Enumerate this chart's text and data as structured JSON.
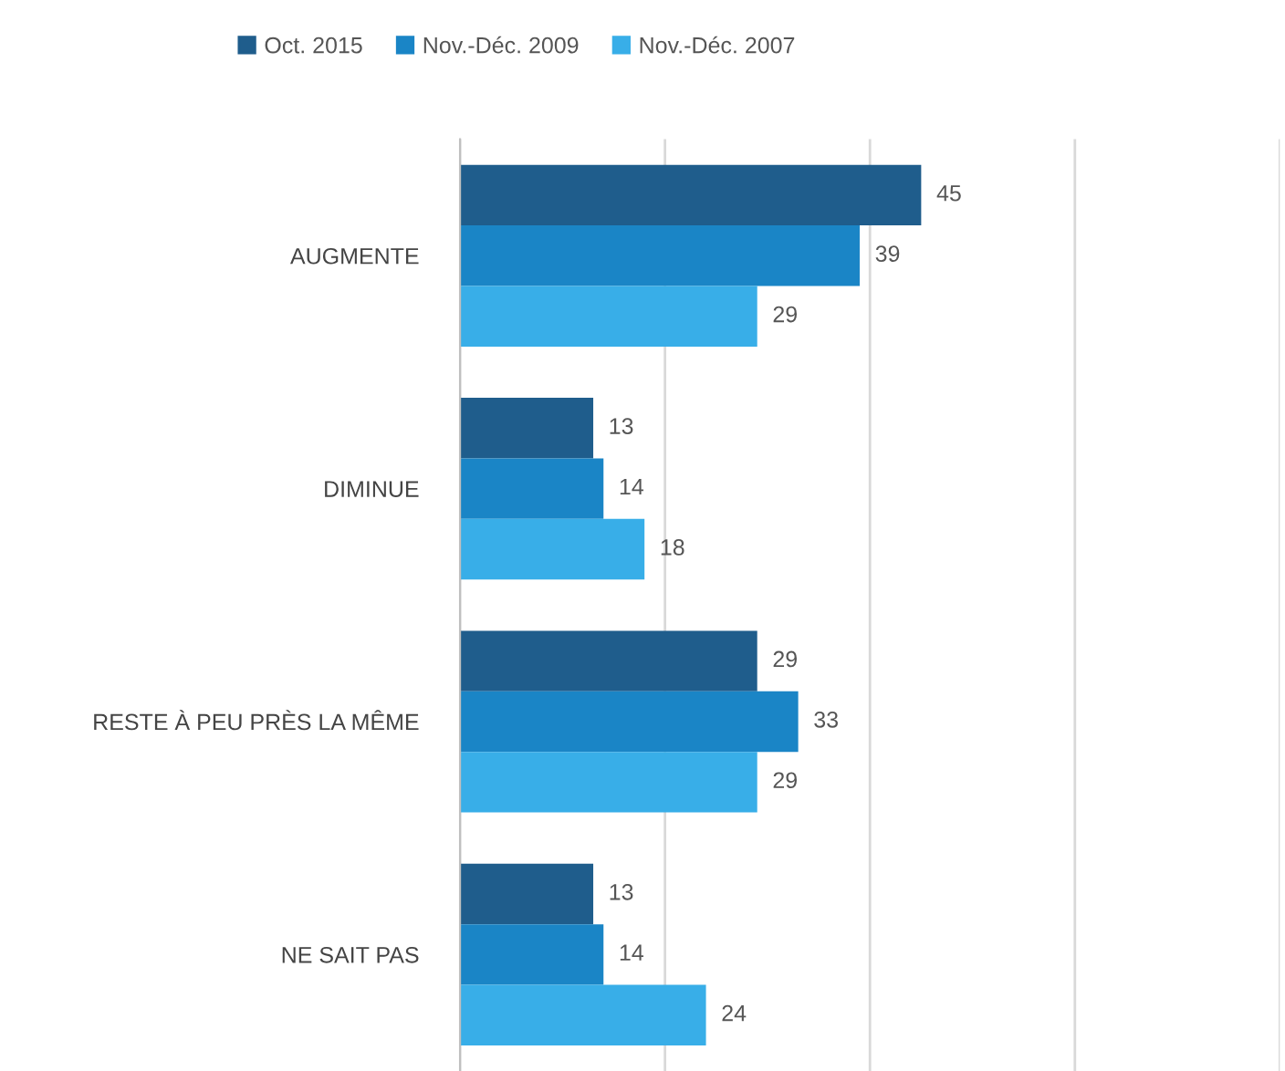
{
  "chart_data": {
    "type": "bar",
    "orientation": "horizontal",
    "categories": [
      "AUGMENTE",
      "DIMINUE",
      "RESTE À PEU PRÈS LA MÊME",
      "NE SAIT PAS"
    ],
    "series": [
      {
        "name": "Oct. 2015",
        "color": "#1f5d8c",
        "values": [
          45,
          13,
          29,
          13
        ]
      },
      {
        "name": "Nov.-Déc. 2009",
        "color": "#1a85c6",
        "values": [
          39,
          14,
          33,
          14
        ]
      },
      {
        "name": "Nov.-Déc. 2007",
        "color": "#38aee8",
        "values": [
          29,
          18,
          29,
          24
        ]
      }
    ],
    "xlim": [
      0,
      80
    ],
    "xticks": [
      {
        "value": 0,
        "label": null
      },
      {
        "value": 20,
        "label": null
      },
      {
        "value": 40,
        "label": null
      },
      {
        "value": 60,
        "label": null
      },
      {
        "value": 80,
        "label": null
      }
    ],
    "grid": "x",
    "legend": "top left",
    "tick_labels": "y",
    "data_labels": true
  }
}
